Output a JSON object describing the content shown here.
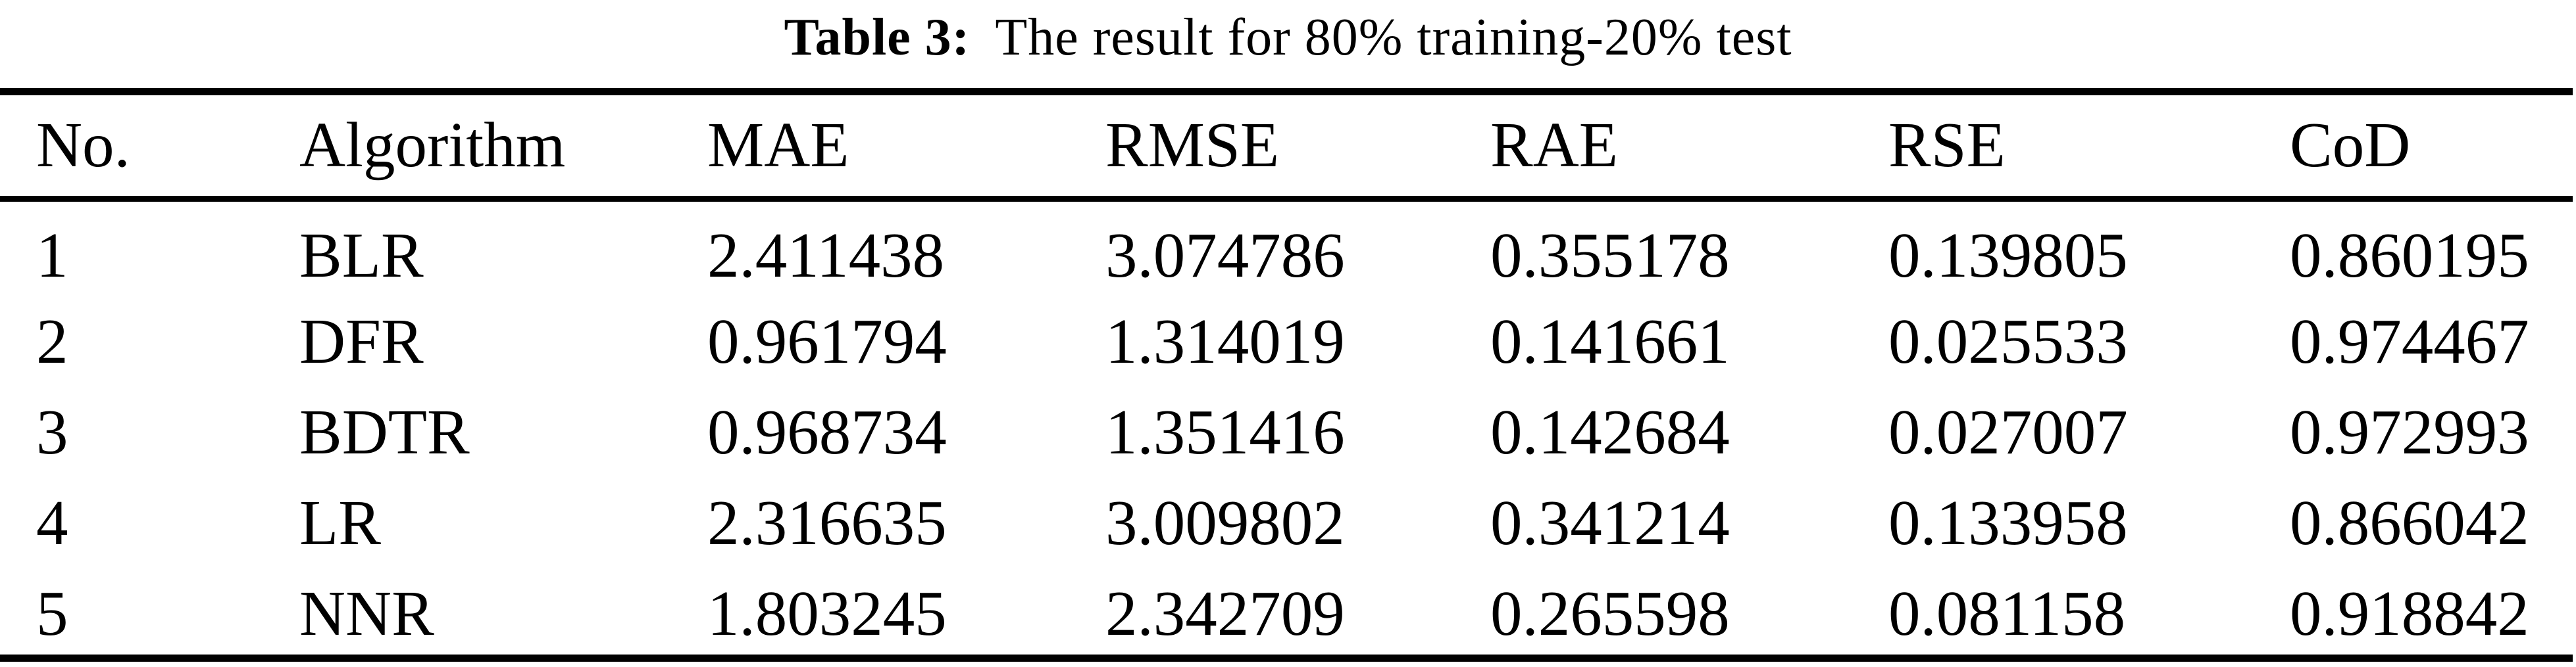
{
  "title": {
    "label": "Table 3:",
    "text": "The result for 80% training-20% test"
  },
  "table": {
    "columns": [
      "No.",
      "Algorithm",
      "MAE",
      "RMSE",
      "RAE",
      "RSE",
      "CoD"
    ],
    "rows": [
      [
        "1",
        "BLR",
        "2.411438",
        "3.074786",
        "0.355178",
        "0.139805",
        "0.860195"
      ],
      [
        "2",
        "DFR",
        "0.961794",
        "1.314019",
        "0.141661",
        "0.025533",
        "0.974467"
      ],
      [
        "3",
        "BDTR",
        "0.968734",
        "1.351416",
        "0.142684",
        "0.027007",
        "0.972993"
      ],
      [
        "4",
        "LR",
        "2.316635",
        "3.009802",
        "0.341214",
        "0.133958",
        "0.866042"
      ],
      [
        "5",
        "NNR",
        "1.803245",
        "2.342709",
        "0.265598",
        "0.081158",
        "0.918842"
      ]
    ]
  },
  "colors": {
    "background": "#ffffff",
    "text": "#000000",
    "rule": "#000000"
  }
}
